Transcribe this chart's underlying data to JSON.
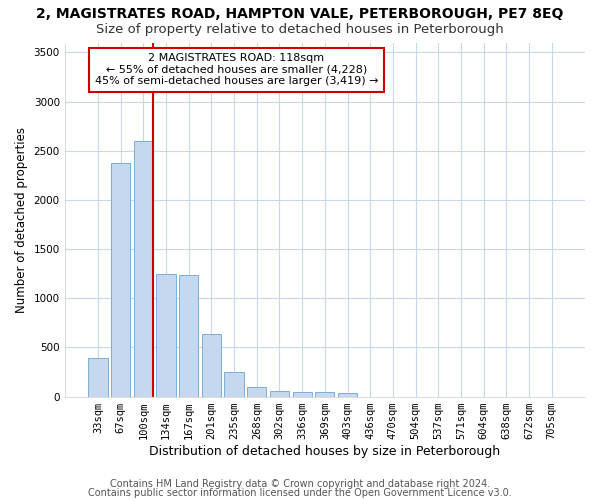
{
  "title1": "2, MAGISTRATES ROAD, HAMPTON VALE, PETERBOROUGH, PE7 8EQ",
  "title2": "Size of property relative to detached houses in Peterborough",
  "xlabel": "Distribution of detached houses by size in Peterborough",
  "ylabel": "Number of detached properties",
  "categories": [
    "33sqm",
    "67sqm",
    "100sqm",
    "134sqm",
    "167sqm",
    "201sqm",
    "235sqm",
    "268sqm",
    "302sqm",
    "336sqm",
    "369sqm",
    "403sqm",
    "436sqm",
    "470sqm",
    "504sqm",
    "537sqm",
    "571sqm",
    "604sqm",
    "638sqm",
    "672sqm",
    "705sqm"
  ],
  "values": [
    390,
    2375,
    2600,
    1250,
    1240,
    640,
    255,
    100,
    55,
    50,
    50,
    35,
    0,
    0,
    0,
    0,
    0,
    0,
    0,
    0,
    0
  ],
  "bar_color": "#c5d8f0",
  "bar_edgecolor": "#7bafd4",
  "vline_x_index": 2,
  "vline_color": "#cc0000",
  "annotation_text": "2 MAGISTRATES ROAD: 118sqm\n← 55% of detached houses are smaller (4,228)\n45% of semi-detached houses are larger (3,419) →",
  "annotation_box_facecolor": "#ffffff",
  "annotation_box_edgecolor": "#cc0000",
  "ylim": [
    0,
    3600
  ],
  "yticks": [
    0,
    500,
    1000,
    1500,
    2000,
    2500,
    3000,
    3500
  ],
  "footer1": "Contains HM Land Registry data © Crown copyright and database right 2024.",
  "footer2": "Contains public sector information licensed under the Open Government Licence v3.0.",
  "fig_facecolor": "#ffffff",
  "plot_facecolor": "#ffffff",
  "grid_color": "#c8d8ec",
  "title1_fontsize": 10,
  "title2_fontsize": 9.5,
  "xlabel_fontsize": 9,
  "ylabel_fontsize": 8.5,
  "tick_fontsize": 7.5,
  "annot_fontsize": 8,
  "footer_fontsize": 7
}
